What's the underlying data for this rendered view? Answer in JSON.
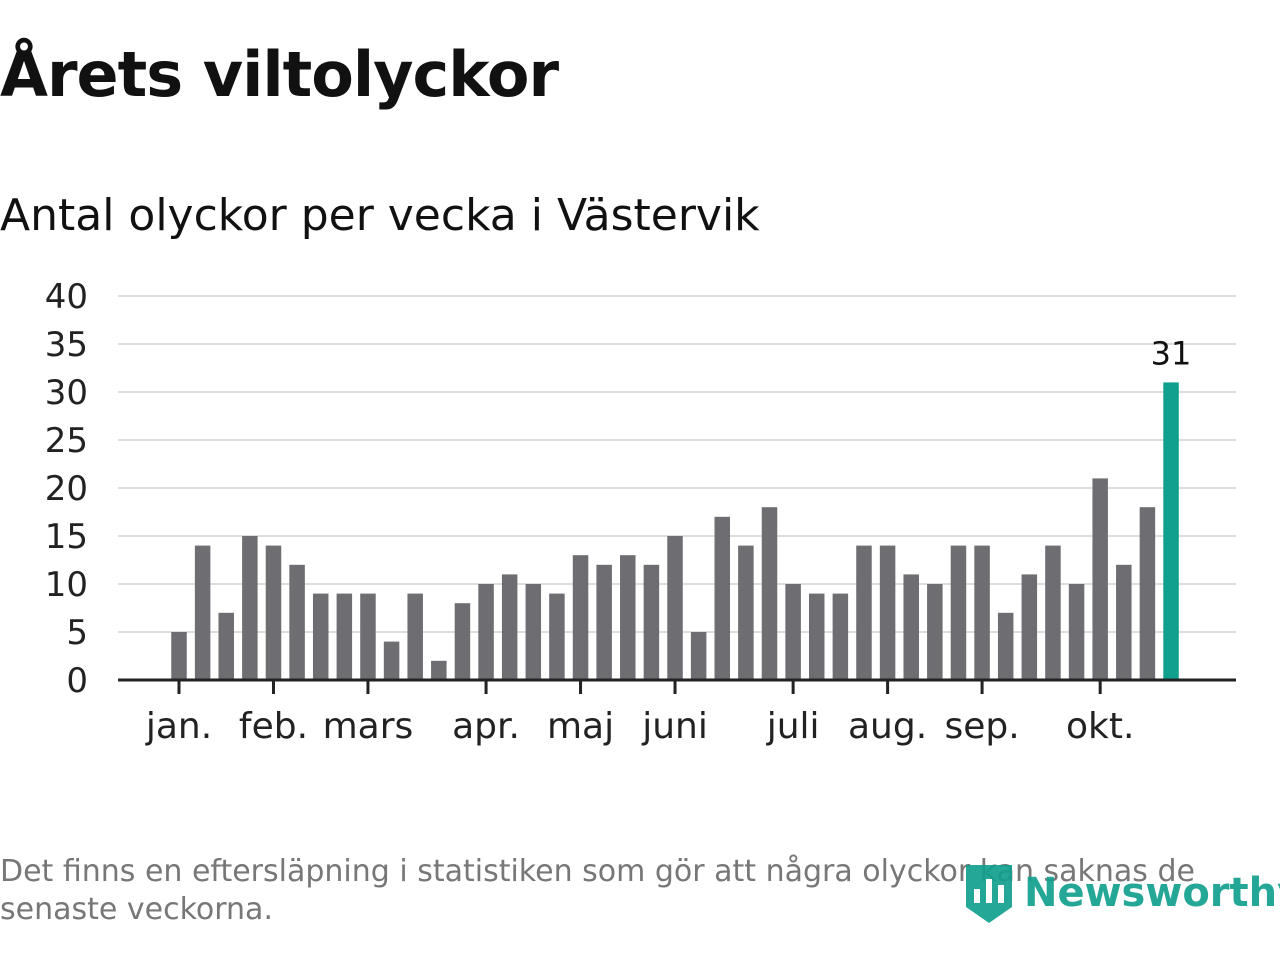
{
  "title": "Årets viltolyckor",
  "subtitle": "Antal olyckor per vecka i Västervik",
  "footnote": "Det finns en eftersläpning i statistiken som gör att några olyckor kan saknas de senaste veckorna.",
  "brand": {
    "name": "Newsworthy",
    "icon": "newsworthy-logo-icon",
    "color": "#12a08e"
  },
  "colors": {
    "bar": "#6e6d72",
    "highlight": "#12a08e",
    "grid": "#dddddd",
    "axis": "#222222"
  },
  "chart_data": {
    "type": "bar",
    "title": "Antal olyckor per vecka i Västervik",
    "xlabel": "",
    "ylabel": "",
    "ylim": [
      0,
      40
    ],
    "yticks": [
      0,
      5,
      10,
      15,
      20,
      25,
      30,
      35,
      40
    ],
    "grid": true,
    "x": [
      1,
      2,
      3,
      4,
      5,
      6,
      7,
      8,
      9,
      10,
      11,
      12,
      13,
      14,
      15,
      16,
      17,
      18,
      19,
      20,
      21,
      22,
      23,
      24,
      25,
      26,
      27,
      28,
      29,
      30,
      31,
      32,
      33,
      34,
      35,
      36,
      37,
      38,
      39,
      40,
      41,
      42,
      43
    ],
    "values": [
      5,
      14,
      7,
      15,
      14,
      12,
      9,
      9,
      9,
      4,
      9,
      2,
      8,
      10,
      11,
      10,
      9,
      13,
      12,
      13,
      12,
      15,
      5,
      17,
      14,
      18,
      10,
      9,
      9,
      14,
      14,
      11,
      10,
      14,
      14,
      7,
      11,
      14,
      10,
      21,
      12,
      18,
      31
    ],
    "highlight_index": 42,
    "data_label": "31",
    "month_ticks": [
      {
        "label": "jan.",
        "week": 1
      },
      {
        "label": "feb.",
        "week": 5
      },
      {
        "label": "mars",
        "week": 9
      },
      {
        "label": "apr.",
        "week": 14
      },
      {
        "label": "maj",
        "week": 18
      },
      {
        "label": "juni",
        "week": 22
      },
      {
        "label": "juli",
        "week": 27
      },
      {
        "label": "aug.",
        "week": 31
      },
      {
        "label": "sep.",
        "week": 35
      },
      {
        "label": "okt.",
        "week": 40
      }
    ]
  }
}
